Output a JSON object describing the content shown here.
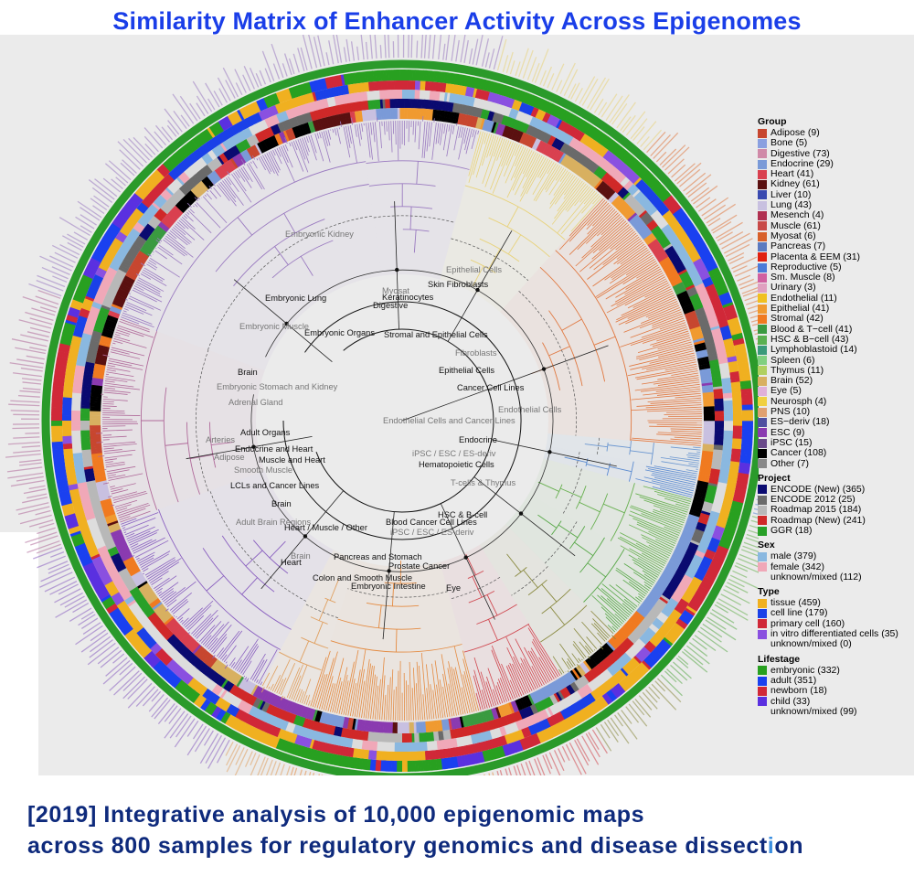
{
  "title": "Similarity Matrix of Enhancer Activity Across Epigenomes",
  "caption": {
    "line1": "[2019] Integrative analysis of 10,000 epigenomic maps",
    "line2_prefix": "across 800 samples for regulatory genomics and disease dissect",
    "line2_highlight": "i",
    "line2_suffix": "on"
  },
  "legend": {
    "group": {
      "title": "Group",
      "items": [
        {
          "label": "Adipose (9)",
          "color": "#c7462f"
        },
        {
          "label": "Bone (5)",
          "color": "#8aa0e0"
        },
        {
          "label": "Digestive (73)",
          "color": "#d08aa8"
        },
        {
          "label": "Endocrine (29)",
          "color": "#7a9ad8"
        },
        {
          "label": "Heart (41)",
          "color": "#d9404f"
        },
        {
          "label": "Kidney (61)",
          "color": "#5a1010"
        },
        {
          "label": "Liver (10)",
          "color": "#3a4ab0"
        },
        {
          "label": "Lung (43)",
          "color": "#c8c0e0"
        },
        {
          "label": "Mesench (4)",
          "color": "#b03050"
        },
        {
          "label": "Muscle (61)",
          "color": "#c84a48"
        },
        {
          "label": "Myosat (6)",
          "color": "#d8602a"
        },
        {
          "label": "Pancreas (7)",
          "color": "#5a7ac0"
        },
        {
          "label": "Placenta & EEM (31)",
          "color": "#e02010"
        },
        {
          "label": "Reproductive (5)",
          "color": "#4a7ad8"
        },
        {
          "label": "Sm. Muscle (8)",
          "color": "#d060a0"
        },
        {
          "label": "Urinary (3)",
          "color": "#e0a0c0"
        },
        {
          "label": "Endothelial (11)",
          "color": "#f0c020"
        },
        {
          "label": "Epithelial (41)",
          "color": "#f09a30"
        },
        {
          "label": "Stromal (42)",
          "color": "#f07a20"
        },
        {
          "label": "Blood & T−cell (41)",
          "color": "#3a9a40"
        },
        {
          "label": "HSC & B−cell (43)",
          "color": "#5ab050"
        },
        {
          "label": "Lymphoblastoid (14)",
          "color": "#3a9a7a"
        },
        {
          "label": "Spleen (6)",
          "color": "#80d080"
        },
        {
          "label": "Thymus (11)",
          "color": "#b0d060"
        },
        {
          "label": "Brain (52)",
          "color": "#d8b060"
        },
        {
          "label": "Eye (5)",
          "color": "#e0b0d8"
        },
        {
          "label": "Neurosph (4)",
          "color": "#f0d040"
        },
        {
          "label": "PNS (10)",
          "color": "#e0a070"
        },
        {
          "label": "ES−deriv (18)",
          "color": "#5050a0"
        },
        {
          "label": "ESC (9)",
          "color": "#8a3ab0"
        },
        {
          "label": "iPSC (15)",
          "color": "#6a4a8a"
        },
        {
          "label": "Cancer (108)",
          "color": "#000000"
        },
        {
          "label": "Other (7)",
          "color": "#888888"
        }
      ]
    },
    "project": {
      "title": "Project",
      "items": [
        {
          "label": "ENCODE (New) (365)",
          "color": "#0a0a70"
        },
        {
          "label": "ENCODE 2012 (25)",
          "color": "#6a6a6a"
        },
        {
          "label": "Roadmap 2015 (184)",
          "color": "#b8b8b8"
        },
        {
          "label": "Roadmap (New) (241)",
          "color": "#d02828"
        },
        {
          "label": "GGR (18)",
          "color": "#28a028"
        }
      ]
    },
    "sex": {
      "title": "Sex",
      "items": [
        {
          "label": "male (379)",
          "color": "#8ab8e0"
        },
        {
          "label": "female (342)",
          "color": "#f0a8b8"
        },
        {
          "label": "unknown/mixed (112)",
          "color": ""
        }
      ]
    },
    "type": {
      "title": "Type",
      "items": [
        {
          "label": "tissue (459)",
          "color": "#f0b020"
        },
        {
          "label": "cell line (179)",
          "color": "#1a40e8"
        },
        {
          "label": "primary cell (160)",
          "color": "#d02838"
        },
        {
          "label": "in vitro differentiated cells (35)",
          "color": "#8a50e0"
        },
        {
          "label": "unknown/mixed (0)",
          "color": ""
        }
      ]
    },
    "lifestage": {
      "title": "Lifestage",
      "items": [
        {
          "label": "embryonic (332)",
          "color": "#28a020"
        },
        {
          "label": "adult (351)",
          "color": "#1a40f0"
        },
        {
          "label": "newborn (18)",
          "color": "#d02838"
        },
        {
          "label": "child (33)",
          "color": "#5a30e0"
        },
        {
          "label": "unknown/mixed (99)",
          "color": ""
        }
      ]
    }
  },
  "clades": [
    {
      "label": "Embryonic Kidney",
      "tone": "gray"
    },
    {
      "label": "Embryonic Lung",
      "tone": "black"
    },
    {
      "label": "Embryonic Muscle",
      "tone": "gray"
    },
    {
      "label": "Embryonic Organs",
      "tone": "black"
    },
    {
      "label": "Digestive",
      "tone": "black"
    },
    {
      "label": "Myosat",
      "tone": "gray"
    },
    {
      "label": "Keratinocytes",
      "tone": "black"
    },
    {
      "label": "Skin Fibroblasts",
      "tone": "black"
    },
    {
      "label": "Epithelial Cells",
      "tone": "gray"
    },
    {
      "label": "Stromal and Epithelial Cells",
      "tone": "black"
    },
    {
      "label": "Fibroblasts",
      "tone": "gray"
    },
    {
      "label": "Epithelial Cells",
      "tone": "black"
    },
    {
      "label": "Cancer Cell Lines",
      "tone": "black"
    },
    {
      "label": "Brain",
      "tone": "black"
    },
    {
      "label": "Embryonic Stomach and Kidney",
      "tone": "gray"
    },
    {
      "label": "Adrenal Gland",
      "tone": "gray"
    },
    {
      "label": "Endothelial Cells",
      "tone": "gray"
    },
    {
      "label": "Endothelial Cells and Cancer Lines",
      "tone": "gray"
    },
    {
      "label": "Adult Organs",
      "tone": "black"
    },
    {
      "label": "Arteries",
      "tone": "gray"
    },
    {
      "label": "Endocrine and Heart",
      "tone": "black"
    },
    {
      "label": "Adipose",
      "tone": "gray"
    },
    {
      "label": "Muscle and Heart",
      "tone": "black"
    },
    {
      "label": "Smooth Muscle",
      "tone": "gray"
    },
    {
      "label": "Endocrine",
      "tone": "black"
    },
    {
      "label": "iPSC / ESC / ES-deriv",
      "tone": "gray"
    },
    {
      "label": "Hematopoietic Cells",
      "tone": "black"
    },
    {
      "label": "LCLs and Cancer Lines",
      "tone": "black"
    },
    {
      "label": "T-cells & Thymus",
      "tone": "gray"
    },
    {
      "label": "Brain",
      "tone": "black"
    },
    {
      "label": "Adult Brain Regions",
      "tone": "gray"
    },
    {
      "label": "Heart / Muscle / Other",
      "tone": "black"
    },
    {
      "label": "Blood Cancer Cell Lines",
      "tone": "black"
    },
    {
      "label": "HSC & B-cell",
      "tone": "black"
    },
    {
      "label": "iPSC / ESC / ES-deriv",
      "tone": "gray"
    },
    {
      "label": "Heart",
      "tone": "black"
    },
    {
      "label": "Brain",
      "tone": "gray"
    },
    {
      "label": "Pancreas and Stomach",
      "tone": "black"
    },
    {
      "label": "Prostate Cancer",
      "tone": "black"
    },
    {
      "label": "Colon and Smooth Muscle",
      "tone": "black"
    },
    {
      "label": "Embryonic Intestine",
      "tone": "black"
    },
    {
      "label": "Eye",
      "tone": "black"
    }
  ],
  "sectors": [
    {
      "from": 200,
      "to": 262,
      "color": "#9a7ac0"
    },
    {
      "from": 262,
      "to": 285,
      "color": "#9a7ac0"
    },
    {
      "from": 285,
      "to": 312,
      "color": "#e8d27a"
    },
    {
      "from": 312,
      "to": 365,
      "color": "#e07840"
    },
    {
      "from": 365,
      "to": 370,
      "color": "#6a96d0"
    },
    {
      "from": 370,
      "to": 375,
      "color": "#5a8ad0"
    },
    {
      "from": 375,
      "to": 390,
      "color": "#68b050"
    },
    {
      "from": 390,
      "to": 405,
      "color": "#58a848"
    },
    {
      "from": 405,
      "to": 418,
      "color": "#8a8a40"
    },
    {
      "from": 418,
      "to": 435,
      "color": "#d04850"
    },
    {
      "from": 435,
      "to": 468,
      "color": "#e48a40"
    },
    {
      "from": 468,
      "to": 478,
      "color": "#e0a060"
    },
    {
      "from": 478,
      "to": 520,
      "color": "#8a60c0"
    },
    {
      "from": 520,
      "to": 560,
      "color": "#b06a9a"
    }
  ]
}
